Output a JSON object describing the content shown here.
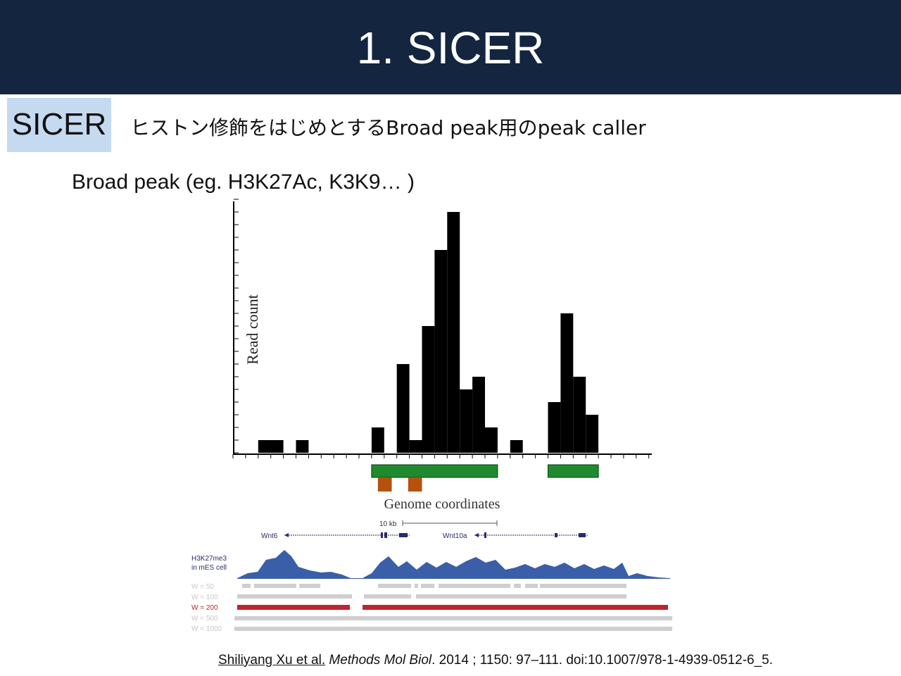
{
  "slide": {
    "title": "1. SICER",
    "tag": "SICER",
    "subtitle": "ヒストン修飾をはじめとするBroad peak用のpeak caller",
    "bullet": "Broad peak (eg. H3K27Ac, K3K9… )"
  },
  "figure": {
    "chart_data": {
      "type": "bar",
      "ylabel": "Read count",
      "xlabel": "Genome coordinates",
      "ylim": [
        0,
        20
      ],
      "bins": [
        {
          "start": 2,
          "end": 4,
          "value": 1
        },
        {
          "start": 5,
          "end": 6,
          "value": 1
        },
        {
          "start": 11,
          "end": 12,
          "value": 2
        },
        {
          "start": 13,
          "end": 14,
          "value": 7
        },
        {
          "start": 14,
          "end": 15,
          "value": 1
        },
        {
          "start": 15,
          "end": 16,
          "value": 10
        },
        {
          "start": 16,
          "end": 17,
          "value": 16
        },
        {
          "start": 17,
          "end": 18,
          "value": 19
        },
        {
          "start": 18,
          "end": 19,
          "value": 5
        },
        {
          "start": 19,
          "end": 20,
          "value": 6
        },
        {
          "start": 20,
          "end": 21,
          "value": 2
        },
        {
          "start": 22,
          "end": 23,
          "value": 1
        },
        {
          "start": 25,
          "end": 26,
          "value": 4
        },
        {
          "start": 26,
          "end": 27,
          "value": 11
        },
        {
          "start": 27,
          "end": 28,
          "value": 6
        },
        {
          "start": 28,
          "end": 29,
          "value": 3
        }
      ],
      "x_bins": 33,
      "islands": [
        {
          "start": 11,
          "end": 21
        },
        {
          "start": 25,
          "end": 29
        }
      ],
      "sub_islands": [
        {
          "start": 11.5,
          "end": 12.6
        },
        {
          "start": 13.9,
          "end": 15
        }
      ],
      "colors": {
        "bars": "#000000",
        "island": "#1f8a2e",
        "sub_island": "#b5520e"
      }
    },
    "track": {
      "scale_label": "10 kb",
      "gene1": "Wnt6",
      "gene2": "Wnt10a",
      "signal_label_line1": "H3K27me3",
      "signal_label_line2": "in mES cell",
      "signal_color": "#3a5fa8",
      "window_labels": [
        "W = 50",
        "W = 100",
        "W = 200",
        "W = 500",
        "W = 1000"
      ],
      "highlight_color": "#c0242b"
    }
  },
  "citation": {
    "authors": "Shiliyang Xu et al.",
    "journal": "Methods Mol Biol",
    "details": ". 2014 ; 1150: 97–111. doi:10.1007/978-1-4939-0512-6_5."
  }
}
